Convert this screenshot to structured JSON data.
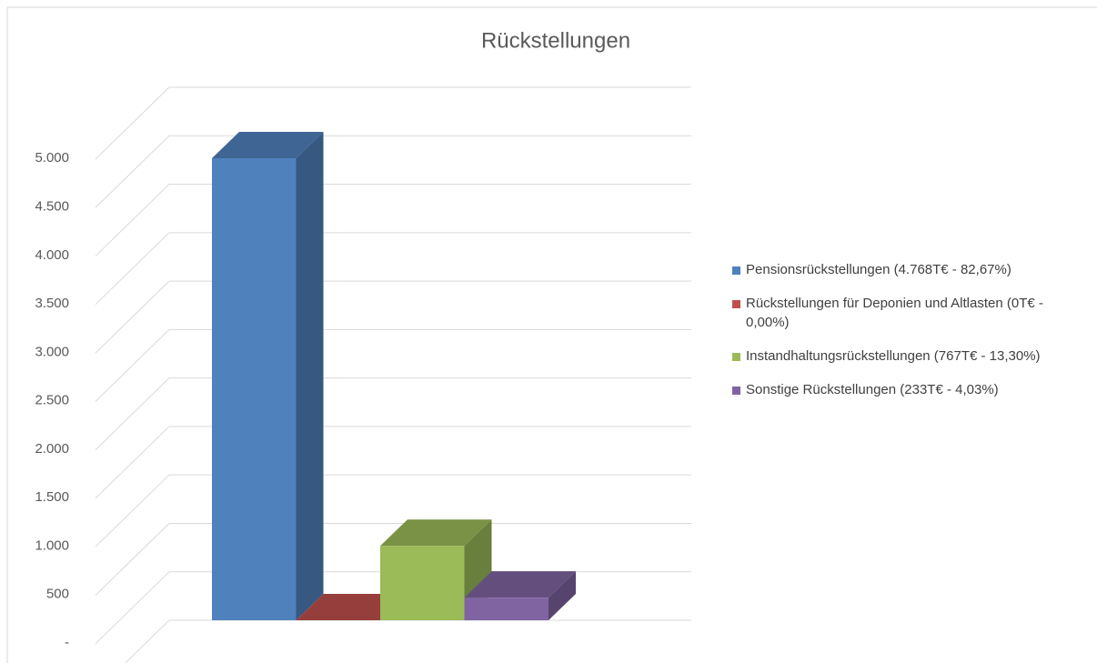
{
  "chart_data": {
    "type": "bar",
    "title": "Rückstellungen",
    "series": [
      {
        "name": "Pensionsrückstellungen (4.768T€ - 82,67%)",
        "color": "#4f81bd",
        "values": [
          4768
        ]
      },
      {
        "name": "Rückstellungen für Deponien und Altlasten (0T€ - 0,00%)",
        "color": "#c0504d",
        "values": [
          0
        ]
      },
      {
        "name": "Instandhaltungsrückstellungen (767T€ - 13,30%)",
        "color": "#9bbb59",
        "values": [
          767
        ]
      },
      {
        "name": "Sonstige Rückstellungen (233T€ - 4,03%)",
        "color": "#8064a2",
        "values": [
          233
        ]
      }
    ],
    "ylim": [
      0,
      5500
    ],
    "yticks": [
      {
        "value": 0,
        "label": "-"
      },
      500,
      {
        "value": 1000,
        "label": "1.000"
      },
      {
        "value": 1500,
        "label": "1.500"
      },
      {
        "value": 2000,
        "label": "2.000"
      },
      {
        "value": 2500,
        "label": "2.500"
      },
      {
        "value": 3000,
        "label": "3.000"
      },
      {
        "value": 3500,
        "label": "3.500"
      },
      {
        "value": 4000,
        "label": "4.000"
      },
      {
        "value": 4500,
        "label": "4.500"
      },
      {
        "value": 5000,
        "label": "5.000"
      }
    ],
    "grid": true,
    "legend": "right"
  }
}
